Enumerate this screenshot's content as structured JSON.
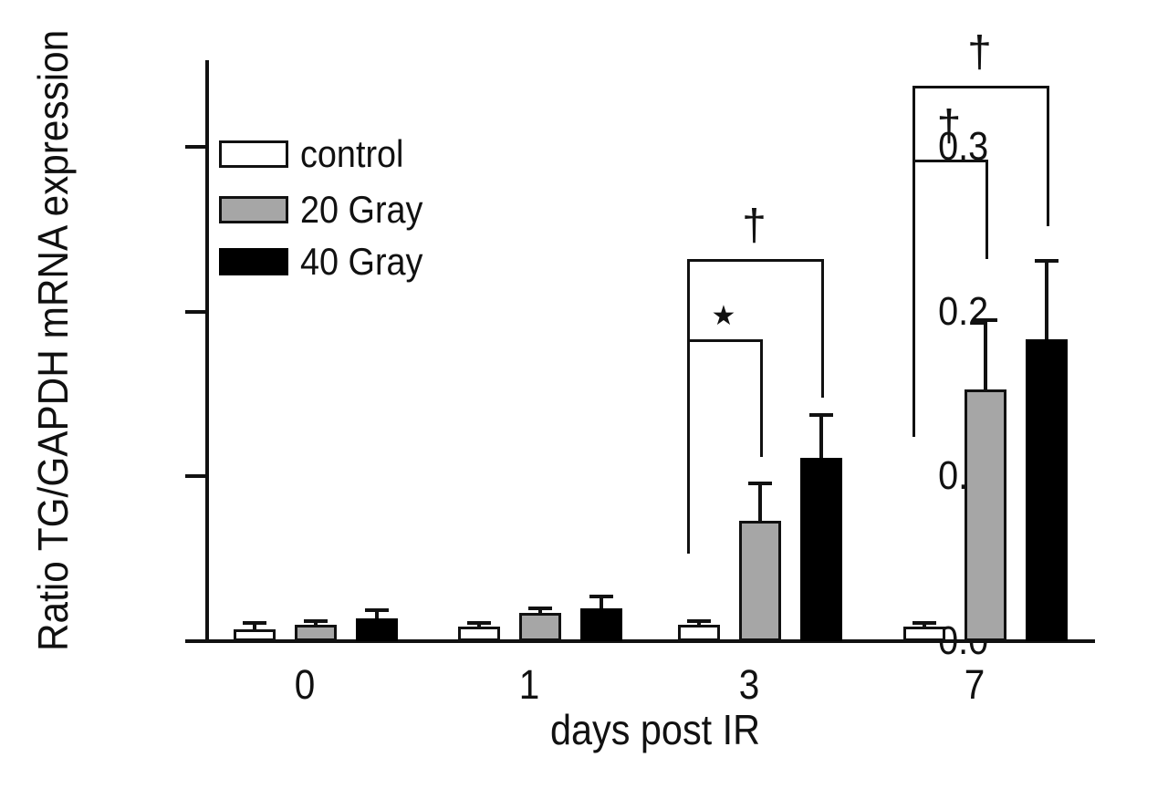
{
  "chart_data": {
    "type": "bar",
    "title": "",
    "xlabel": "days post IR",
    "ylabel": "Ratio TG/GAPDH mRNA expression",
    "categories": [
      "0",
      "1",
      "3",
      "7"
    ],
    "series": [
      {
        "name": "control",
        "fill": "#ffffff",
        "values": [
          0.007,
          0.009,
          0.01,
          0.009
        ],
        "errors_upper": [
          0.004,
          0.002,
          0.002,
          0.002
        ]
      },
      {
        "name": "20 Gray",
        "fill": "#a6a6a6",
        "values": [
          0.01,
          0.017,
          0.073,
          0.153
        ],
        "errors_upper": [
          0.002,
          0.003,
          0.023,
          0.042
        ]
      },
      {
        "name": "40 Gray",
        "fill": "#000000",
        "values": [
          0.014,
          0.02,
          0.111,
          0.183
        ],
        "errors_upper": [
          0.005,
          0.007,
          0.026,
          0.048
        ]
      }
    ],
    "yticks": [
      {
        "value": 0,
        "label": "0.0"
      },
      {
        "value": 0.1,
        "label": "0.1"
      },
      {
        "value": 0.2,
        "label": "0.2"
      },
      {
        "value": 0.3,
        "label": "0.3"
      }
    ],
    "ylim": [
      0,
      0.353
    ],
    "grid": false,
    "legend_position": "top-left-inside",
    "error_bar_style": "upper-cap",
    "ink_color": "#111111",
    "significance": [
      {
        "category": "3",
        "symbol": "*",
        "between": [
          "control",
          "20 Gray"
        ],
        "bracket_top": 0.183,
        "left_leg_bottom": 0.053,
        "right_leg_bottom": 0.112
      },
      {
        "category": "3",
        "symbol": "†",
        "between": [
          "control",
          "40 Gray"
        ],
        "bracket_top": 0.232,
        "left_leg_bottom": 0.053,
        "right_leg_bottom": 0.148
      },
      {
        "category": "7",
        "symbol": "†",
        "between": [
          "control",
          "20 Gray"
        ],
        "bracket_top": 0.292,
        "left_leg_bottom": 0.124,
        "right_leg_bottom": 0.232
      },
      {
        "category": "7",
        "symbol": "†",
        "between": [
          "control",
          "40 Gray"
        ],
        "bracket_top": 0.337,
        "left_leg_bottom": 0.124,
        "right_leg_bottom": 0.252
      }
    ]
  }
}
